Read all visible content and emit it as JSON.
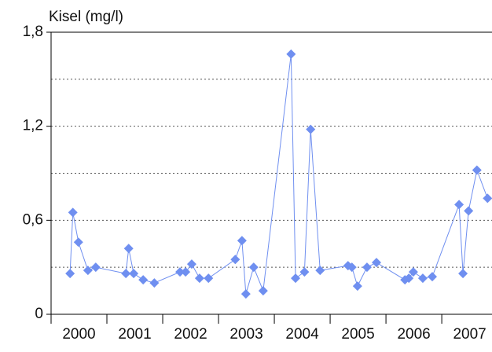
{
  "chart_data": {
    "type": "line",
    "title": "Kisel (mg/l)",
    "x": [
      2000.34,
      2000.39,
      2000.49,
      2000.66,
      2000.8,
      2001.34,
      2001.39,
      2001.48,
      2001.65,
      2001.85,
      2002.31,
      2002.41,
      2002.52,
      2002.66,
      2002.82,
      2003.3,
      2003.42,
      2003.49,
      2003.63,
      2003.8,
      2004.3,
      2004.38,
      2004.54,
      2004.65,
      2004.82,
      2005.32,
      2005.39,
      2005.49,
      2005.66,
      2005.83,
      2006.34,
      2006.41,
      2006.49,
      2006.66,
      2006.83,
      2007.31,
      2007.38,
      2007.48,
      2007.63,
      2007.82
    ],
    "values": [
      0.26,
      0.65,
      0.46,
      0.28,
      0.3,
      0.26,
      0.42,
      0.26,
      0.22,
      0.2,
      0.27,
      0.27,
      0.32,
      0.23,
      0.23,
      0.35,
      0.47,
      0.13,
      0.3,
      0.15,
      1.66,
      0.23,
      0.27,
      1.18,
      0.28,
      0.31,
      0.3,
      0.18,
      0.3,
      0.33,
      0.22,
      0.23,
      0.27,
      0.23,
      0.24,
      0.7,
      0.26,
      0.66,
      0.92,
      0.74
    ],
    "color": "#6f8ff0",
    "xlim": [
      2000,
      2007.9
    ],
    "xticks": [
      2000,
      2001,
      2002,
      2003,
      2004,
      2005,
      2006,
      2007
    ],
    "ylim": [
      0,
      1.8
    ],
    "yticks": [
      0,
      {
        "value": 0.6,
        "label": "0,6"
      },
      {
        "value": 1.2,
        "label": "1,2"
      },
      {
        "value": 1.8,
        "label": "1,8"
      }
    ],
    "ygrid": [
      0.3,
      0.6,
      0.9,
      1.2,
      1.5
    ]
  }
}
